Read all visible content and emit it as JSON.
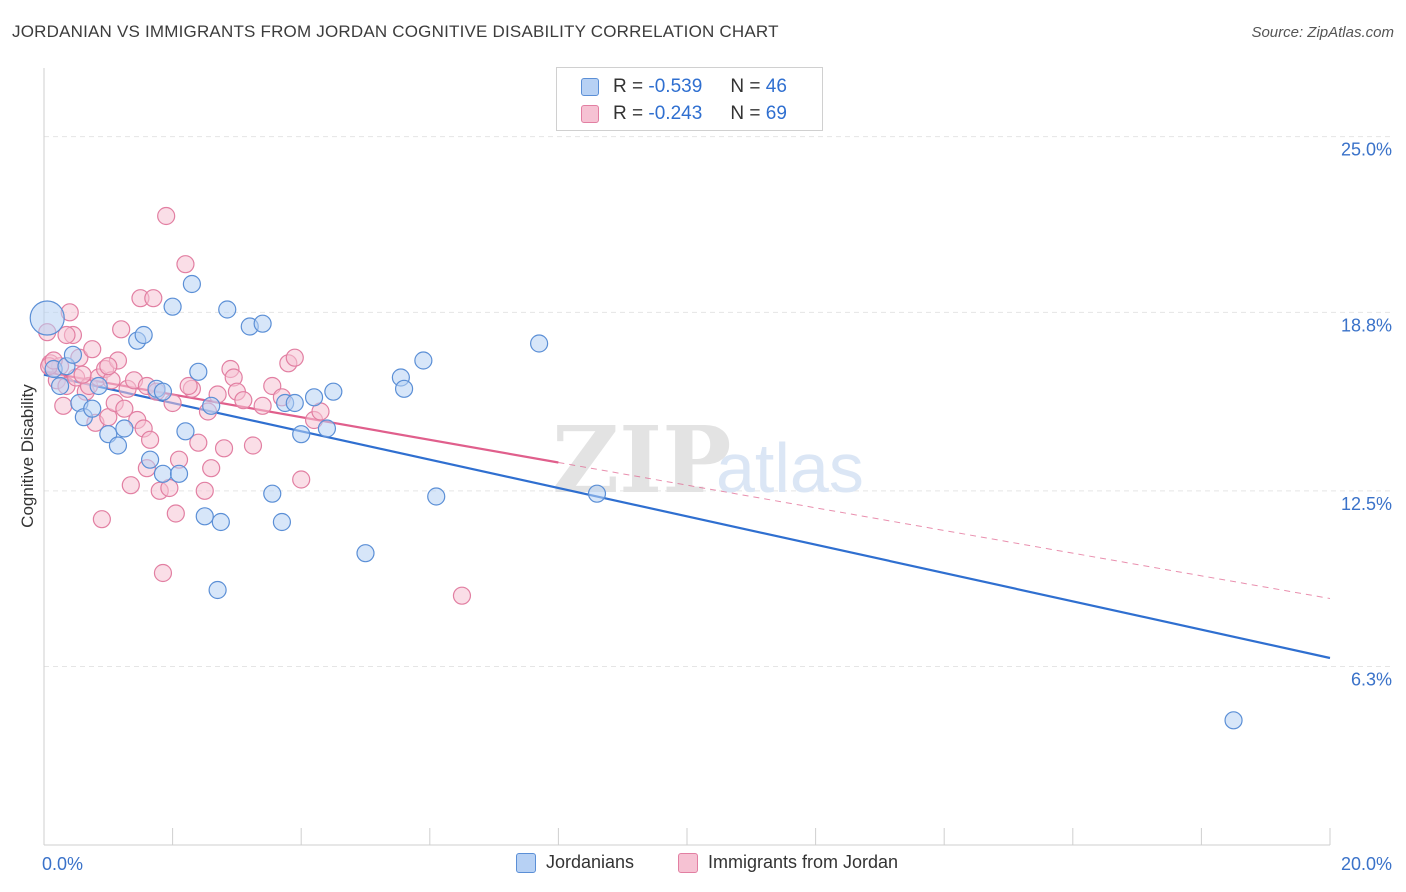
{
  "title": "JORDANIAN VS IMMIGRANTS FROM JORDAN COGNITIVE DISABILITY CORRELATION CHART",
  "source": "Source: ZipAtlas.com",
  "watermark": {
    "zip": "ZIP",
    "atlas": "atlas"
  },
  "legend": {
    "r_label": "R =",
    "n_label": "N =",
    "rows": [
      {
        "r": "-0.539",
        "n": "46"
      },
      {
        "r": "-0.243",
        "n": "69"
      }
    ]
  },
  "colors": {
    "blue_fill": "#b7d1f4",
    "blue_stroke": "#5b8fd6",
    "blue_line": "#2f6fd0",
    "pink_fill": "#f6c2d3",
    "pink_stroke": "#e27fa2",
    "pink_line": "#e05f8c",
    "tick_label": "#3a72c9",
    "grid": "#e5e5e5"
  },
  "chart_data": {
    "type": "scatter",
    "title": "JORDANIAN VS IMMIGRANTS FROM JORDAN COGNITIVE DISABILITY CORRELATION CHART",
    "xlabel": "",
    "ylabel": "Cognitive Disability",
    "xlim": [
      0,
      20
    ],
    "ylim": [
      0,
      27
    ],
    "x_tick_labels": [
      "0.0%",
      "20.0%"
    ],
    "y_ticks": [
      6.3,
      12.5,
      18.8,
      25.0
    ],
    "y_tick_labels": [
      "6.3%",
      "12.5%",
      "18.8%",
      "25.0%"
    ],
    "grid": true,
    "legend_position": "bottom",
    "series": [
      {
        "name": "Jordanians",
        "trend": {
          "x": [
            0,
            20
          ],
          "y": [
            16.6,
            6.6
          ],
          "style": "solid"
        },
        "points": [
          [
            0.05,
            18.6
          ],
          [
            0.15,
            16.8
          ],
          [
            0.25,
            16.2
          ],
          [
            0.35,
            16.9
          ],
          [
            0.45,
            17.3
          ],
          [
            0.55,
            15.6
          ],
          [
            0.62,
            15.1
          ],
          [
            0.75,
            15.4
          ],
          [
            0.85,
            16.2
          ],
          [
            1.0,
            14.5
          ],
          [
            1.15,
            14.1
          ],
          [
            1.25,
            14.7
          ],
          [
            1.45,
            17.8
          ],
          [
            1.55,
            18.0
          ],
          [
            1.65,
            13.6
          ],
          [
            1.75,
            16.1
          ],
          [
            1.85,
            13.1
          ],
          [
            2.0,
            19.0
          ],
          [
            2.1,
            13.1
          ],
          [
            2.2,
            14.6
          ],
          [
            2.3,
            19.8
          ],
          [
            2.4,
            16.7
          ],
          [
            2.5,
            11.6
          ],
          [
            2.6,
            15.5
          ],
          [
            2.7,
            9.0
          ],
          [
            2.75,
            11.4
          ],
          [
            2.85,
            18.9
          ],
          [
            3.2,
            18.3
          ],
          [
            3.55,
            12.4
          ],
          [
            3.7,
            11.4
          ],
          [
            3.75,
            15.6
          ],
          [
            3.9,
            15.6
          ],
          [
            4.0,
            14.5
          ],
          [
            4.2,
            15.8
          ],
          [
            4.4,
            14.7
          ],
          [
            4.5,
            16.0
          ],
          [
            5.0,
            10.3
          ],
          [
            5.55,
            16.5
          ],
          [
            5.6,
            16.1
          ],
          [
            5.9,
            17.1
          ],
          [
            6.1,
            12.3
          ],
          [
            7.7,
            17.7
          ],
          [
            3.4,
            18.4
          ],
          [
            1.85,
            16.0
          ],
          [
            8.6,
            12.4
          ],
          [
            18.5,
            4.4
          ]
        ]
      },
      {
        "name": "Immigrants from Jordan",
        "trend": {
          "x": [
            0,
            8
          ],
          "y": [
            16.7,
            13.5
          ],
          "dashed_to": [
            20,
            8.7
          ],
          "style": "solid-then-dashed"
        },
        "points": [
          [
            0.05,
            18.1
          ],
          [
            0.1,
            17.0
          ],
          [
            0.2,
            16.4
          ],
          [
            0.25,
            16.9
          ],
          [
            0.3,
            15.5
          ],
          [
            0.35,
            16.2
          ],
          [
            0.4,
            18.8
          ],
          [
            0.45,
            18.0
          ],
          [
            0.5,
            16.5
          ],
          [
            0.55,
            17.2
          ],
          [
            0.65,
            16.0
          ],
          [
            0.7,
            16.2
          ],
          [
            0.75,
            17.5
          ],
          [
            0.8,
            14.9
          ],
          [
            0.85,
            16.5
          ],
          [
            0.9,
            11.5
          ],
          [
            0.95,
            16.8
          ],
          [
            1.0,
            15.1
          ],
          [
            1.05,
            16.4
          ],
          [
            1.1,
            15.6
          ],
          [
            1.15,
            17.1
          ],
          [
            1.2,
            18.2
          ],
          [
            1.25,
            15.4
          ],
          [
            1.3,
            16.1
          ],
          [
            1.35,
            12.7
          ],
          [
            1.4,
            16.4
          ],
          [
            1.45,
            15.0
          ],
          [
            1.5,
            19.3
          ],
          [
            1.55,
            14.7
          ],
          [
            1.6,
            16.2
          ],
          [
            1.65,
            14.3
          ],
          [
            1.7,
            19.3
          ],
          [
            1.75,
            16.0
          ],
          [
            1.8,
            12.5
          ],
          [
            1.85,
            9.6
          ],
          [
            1.9,
            22.2
          ],
          [
            1.95,
            12.6
          ],
          [
            2.0,
            15.6
          ],
          [
            2.05,
            11.7
          ],
          [
            2.1,
            13.6
          ],
          [
            2.2,
            20.5
          ],
          [
            2.3,
            16.1
          ],
          [
            2.4,
            14.2
          ],
          [
            2.5,
            12.5
          ],
          [
            2.55,
            15.3
          ],
          [
            2.6,
            13.3
          ],
          [
            2.7,
            15.9
          ],
          [
            2.8,
            14.0
          ],
          [
            2.9,
            16.8
          ],
          [
            2.95,
            16.5
          ],
          [
            3.0,
            16.0
          ],
          [
            3.1,
            15.7
          ],
          [
            3.25,
            14.1
          ],
          [
            3.4,
            15.5
          ],
          [
            3.55,
            16.2
          ],
          [
            3.7,
            15.8
          ],
          [
            3.8,
            17.0
          ],
          [
            3.9,
            17.2
          ],
          [
            4.0,
            12.9
          ],
          [
            4.2,
            15.0
          ],
          [
            4.3,
            15.3
          ],
          [
            0.08,
            16.9
          ],
          [
            0.15,
            17.1
          ],
          [
            0.6,
            16.6
          ],
          [
            1.0,
            16.9
          ],
          [
            6.5,
            8.8
          ],
          [
            2.25,
            16.2
          ],
          [
            0.35,
            18.0
          ],
          [
            1.6,
            13.3
          ]
        ]
      }
    ]
  },
  "bottom_legend": [
    "Jordanians",
    "Immigrants from Jordan"
  ]
}
